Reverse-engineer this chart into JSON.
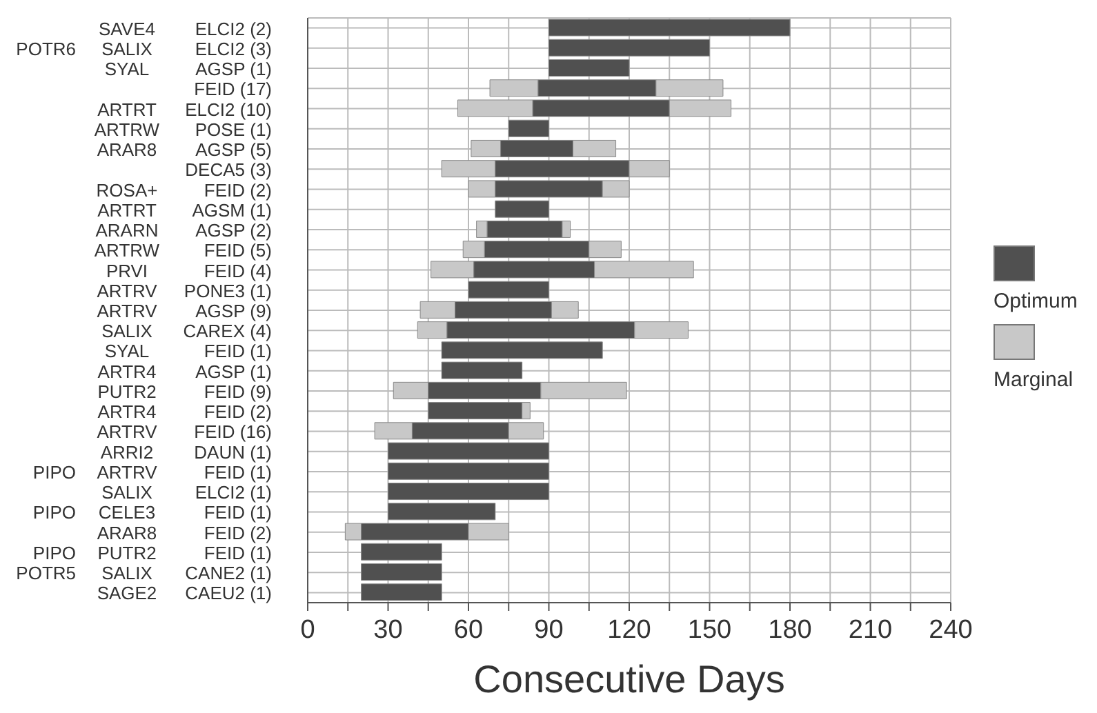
{
  "chart_data": {
    "type": "bar",
    "orientation": "horizontal",
    "xlabel": "Consecutive Days",
    "categories": [
      "SAVE4  ELCI2 (2)",
      "POTR6  SALIX  ELCI2 (3)",
      "SYAL  AGSP (1)",
      "FEID (17)",
      "ARTRT  ELCI2 (10)",
      "ARTRW  POSE (1)",
      "ARAR8  AGSP (5)",
      "DECA5 (3)",
      "ROSA+  FEID (2)",
      "ARTRT  AGSM (1)",
      "ARARN  AGSP (2)",
      "ARTRW  FEID (5)",
      "PRVI  FEID (4)",
      "ARTRV  PONE3 (1)",
      "ARTRV  AGSP (9)",
      "SALIX  CAREX (4)",
      "SYAL  FEID (1)",
      "ARTR4  AGSP (1)",
      "PUTR2  FEID (9)",
      "ARTR4  FEID (2)",
      "ARTRV  FEID (16)",
      "ARRI2  DAUN (1)",
      "PIPO  ARTRV  FEID (1)",
      "SALIX  ELCI2 (1)",
      "PIPO  CELE3  FEID (1)",
      "ARAR8  FEID (2)",
      "PIPO  PUTR2  FEID (1)",
      "POTR5  SALIX  CANE2 (1)",
      "SAGE2  CAEU2 (1)"
    ],
    "series": [
      {
        "name": "Marginal",
        "color": "#c8c8c8",
        "base": [
          null,
          null,
          null,
          68,
          56,
          null,
          61,
          50,
          60,
          null,
          63,
          58,
          46,
          null,
          42,
          41,
          null,
          null,
          32,
          null,
          25,
          null,
          null,
          null,
          null,
          14,
          null,
          null,
          null
        ],
        "values": [
          null,
          null,
          null,
          18,
          28,
          null,
          11,
          20,
          10,
          null,
          4,
          8,
          16,
          null,
          13,
          11,
          null,
          null,
          13,
          null,
          14,
          null,
          null,
          null,
          null,
          6,
          null,
          null,
          null
        ]
      },
      {
        "name": "Optimum",
        "color": "#505050",
        "base": [
          90,
          90,
          90,
          86,
          84,
          75,
          72,
          70,
          70,
          70,
          67,
          66,
          62,
          60,
          55,
          52,
          50,
          50,
          45,
          45,
          39,
          30,
          30,
          30,
          30,
          20,
          20,
          20,
          20
        ],
        "values": [
          90,
          60,
          30,
          44,
          51,
          15,
          27,
          50,
          40,
          20,
          28,
          39,
          45,
          30,
          36,
          70,
          60,
          30,
          42,
          35,
          36,
          60,
          60,
          60,
          40,
          40,
          30,
          30,
          30
        ]
      },
      {
        "color": "#c8c8c8",
        "base": [
          null,
          null,
          null,
          130,
          135,
          null,
          99,
          120,
          110,
          null,
          95,
          105,
          107,
          null,
          91,
          122,
          null,
          null,
          87,
          80,
          75,
          null,
          null,
          null,
          null,
          60,
          null,
          null,
          null
        ],
        "values": [
          null,
          null,
          null,
          25,
          23,
          null,
          16,
          15,
          10,
          null,
          3,
          12,
          37,
          null,
          10,
          20,
          null,
          null,
          32,
          3,
          13,
          null,
          null,
          null,
          null,
          15,
          null,
          null,
          null
        ]
      }
    ],
    "xlim": [
      0,
      240
    ],
    "xticks": [
      0,
      {
        "value": 15,
        "label": null
      },
      30,
      {
        "value": 45,
        "label": null
      },
      60,
      {
        "value": 75,
        "label": null
      },
      90,
      {
        "value": 105,
        "label": null
      },
      120,
      {
        "value": 135,
        "label": null
      },
      150,
      {
        "value": 165,
        "label": null
      },
      180,
      {
        "value": 195,
        "label": null
      },
      210,
      {
        "value": 225,
        "label": null
      },
      240
    ],
    "grid": true,
    "legend": "right"
  }
}
